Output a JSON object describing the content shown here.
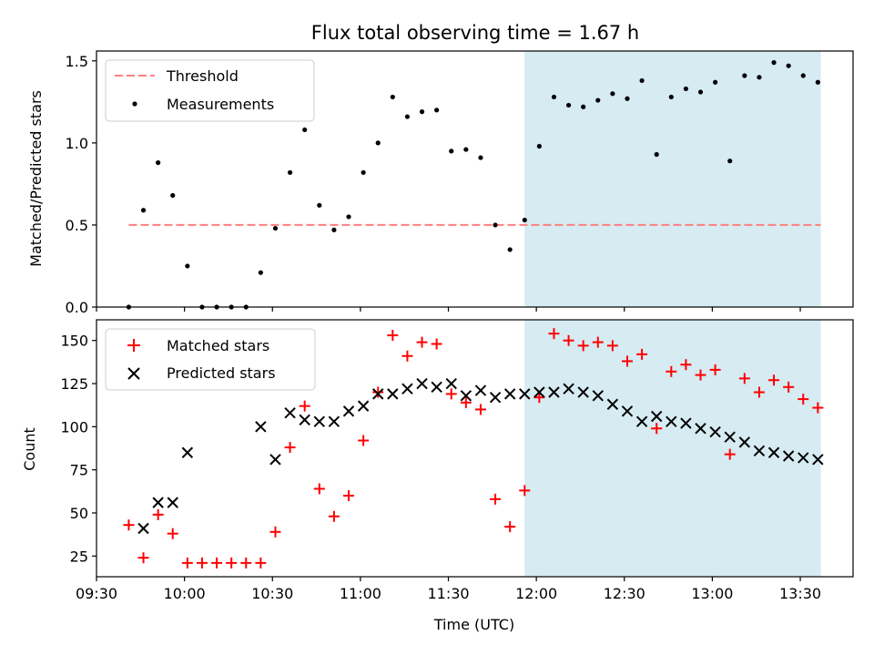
{
  "chart_data": [
    {
      "type": "scatter",
      "title": "Flux total observing time = 1.67 h",
      "ylabel": "Matched/Predicted stars",
      "xlabel": "",
      "ylim": [
        0,
        1.56
      ],
      "yticks": [
        0.0,
        0.5,
        1.0,
        1.5
      ],
      "ytick_labels": [
        "0.0",
        "0.5",
        "1.0",
        "1.5"
      ],
      "grid": false,
      "legend": "top-left",
      "highlight_span": {
        "start": "11:56",
        "end": "13:37",
        "color": "#add8e6"
      },
      "threshold": {
        "name": "Threshold",
        "value": 0.5,
        "start": "09:41",
        "end": "13:37",
        "color": "#ff7f7f"
      },
      "series": [
        {
          "name": "Measurements",
          "color": "#000000",
          "x": [
            "09:41",
            "09:46",
            "09:51",
            "09:56",
            "10:01",
            "10:06",
            "10:11",
            "10:16",
            "10:21",
            "10:26",
            "10:31",
            "10:36",
            "10:41",
            "10:46",
            "10:51",
            "10:56",
            "11:01",
            "11:06",
            "11:11",
            "11:16",
            "11:21",
            "11:26",
            "11:31",
            "11:36",
            "11:41",
            "11:46",
            "11:51",
            "11:56",
            "12:01",
            "12:06",
            "12:11",
            "12:16",
            "12:21",
            "12:26",
            "12:31",
            "12:36",
            "12:41",
            "12:46",
            "12:51",
            "12:56",
            "13:01",
            "13:06",
            "13:11",
            "13:16",
            "13:21",
            "13:26",
            "13:31",
            "13:36"
          ],
          "y": [
            0.0,
            0.59,
            0.88,
            0.68,
            0.25,
            0.0,
            0.0,
            0.0,
            0.0,
            0.21,
            0.48,
            0.82,
            1.08,
            0.62,
            0.47,
            0.55,
            0.82,
            1.0,
            1.28,
            1.16,
            1.19,
            1.2,
            0.95,
            0.96,
            0.91,
            0.5,
            0.35,
            0.53,
            0.98,
            1.28,
            1.23,
            1.22,
            1.26,
            1.3,
            1.27,
            1.38,
            0.93,
            1.28,
            1.33,
            1.31,
            1.37,
            0.89,
            1.41,
            1.4,
            1.49,
            1.47,
            1.41,
            1.37
          ]
        }
      ]
    },
    {
      "type": "scatter",
      "title": "",
      "xlabel": "Time (UTC)",
      "ylabel": "Count",
      "xlim": [
        "09:30",
        "13:48"
      ],
      "xticks": [
        "09:30",
        "10:00",
        "10:30",
        "11:00",
        "11:30",
        "12:00",
        "12:30",
        "13:00",
        "13:30"
      ],
      "ylim": [
        13,
        162
      ],
      "yticks": [
        25,
        50,
        75,
        100,
        125,
        150
      ],
      "grid": false,
      "legend": "top-left",
      "highlight_span": {
        "start": "11:56",
        "end": "13:37",
        "color": "#add8e6"
      },
      "series": [
        {
          "name": "Matched stars",
          "marker": "+",
          "color": "#ff0000",
          "x": [
            "09:41",
            "09:46",
            "09:51",
            "09:56",
            "10:01",
            "10:06",
            "10:11",
            "10:16",
            "10:21",
            "10:26",
            "10:31",
            "10:36",
            "10:41",
            "10:46",
            "10:51",
            "10:56",
            "11:01",
            "11:06",
            "11:11",
            "11:16",
            "11:21",
            "11:26",
            "11:31",
            "11:36",
            "11:41",
            "11:46",
            "11:51",
            "11:56",
            "12:01",
            "12:06",
            "12:11",
            "12:16",
            "12:21",
            "12:26",
            "12:31",
            "12:36",
            "12:41",
            "12:46",
            "12:51",
            "12:56",
            "13:01",
            "13:06",
            "13:11",
            "13:16",
            "13:21",
            "13:26",
            "13:31",
            "13:36"
          ],
          "y": [
            43,
            24,
            49,
            38,
            21,
            21,
            21,
            21,
            21,
            21,
            39,
            88,
            112,
            64,
            48,
            60,
            92,
            120,
            153,
            141,
            149,
            148,
            119,
            114,
            110,
            58,
            42,
            63,
            117,
            154,
            150,
            147,
            149,
            147,
            138,
            142,
            99,
            132,
            136,
            130,
            133,
            84,
            128,
            120,
            127,
            123,
            116,
            111
          ]
        },
        {
          "name": "Predicted stars",
          "marker": "x",
          "color": "#000000",
          "x": [
            "09:46",
            "09:51",
            "09:56",
            "10:01",
            "10:26",
            "10:31",
            "10:36",
            "10:41",
            "10:46",
            "10:51",
            "10:56",
            "11:01",
            "11:06",
            "11:11",
            "11:16",
            "11:21",
            "11:26",
            "11:31",
            "11:36",
            "11:41",
            "11:46",
            "11:51",
            "11:56",
            "12:01",
            "12:06",
            "12:11",
            "12:16",
            "12:21",
            "12:26",
            "12:31",
            "12:36",
            "12:41",
            "12:46",
            "12:51",
            "12:56",
            "13:01",
            "13:06",
            "13:11",
            "13:16",
            "13:21",
            "13:26",
            "13:31",
            "13:36"
          ],
          "y": [
            41,
            56,
            56,
            85,
            100,
            81,
            108,
            104,
            103,
            103,
            109,
            112,
            119,
            119,
            122,
            125,
            123,
            125,
            118,
            121,
            117,
            119,
            119,
            120,
            120,
            122,
            120,
            118,
            113,
            109,
            103,
            106,
            103,
            102,
            99,
            97,
            94,
            91,
            86,
            85,
            83,
            82,
            81
          ]
        }
      ]
    }
  ]
}
